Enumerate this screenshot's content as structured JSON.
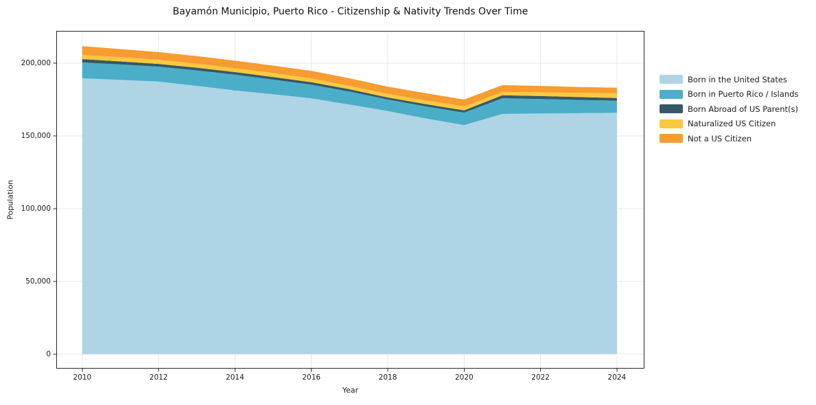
{
  "chart_data": {
    "type": "area",
    "stacked": true,
    "title": "Bayamón Municipio, Puerto Rico - Citizenship & Nativity Trends Over Time",
    "xlabel": "Year",
    "ylabel": "Population",
    "x": [
      2010,
      2011,
      2012,
      2013,
      2014,
      2015,
      2016,
      2017,
      2018,
      2019,
      2020,
      2021,
      2022,
      2023,
      2024
    ],
    "series": [
      {
        "name": "Born in the United States",
        "color": "#a8d0e4",
        "values": [
          189600,
          188500,
          187300,
          184400,
          181300,
          178600,
          175800,
          171500,
          167100,
          162000,
          157400,
          165100,
          165400,
          165600,
          165900
        ]
      },
      {
        "name": "Born in Puerto Rico / Islands",
        "color": "#3ba7c4",
        "values": [
          10900,
          10600,
          10300,
          10600,
          10800,
          10100,
          9400,
          9000,
          7900,
          8300,
          8600,
          10800,
          10000,
          9100,
          8300
        ]
      },
      {
        "name": "Born Abroad of US Parent(s)",
        "color": "#244b5a",
        "values": [
          2300,
          2100,
          1900,
          1900,
          1800,
          1800,
          1700,
          1600,
          1400,
          1500,
          1600,
          2100,
          2000,
          2000,
          1900
        ]
      },
      {
        "name": "Naturalized US Citizen",
        "color": "#fcc32f",
        "values": [
          2900,
          2900,
          2900,
          2800,
          2700,
          2700,
          2600,
          2300,
          2500,
          2600,
          2700,
          2200,
          2600,
          2900,
          3300
        ]
      },
      {
        "name": "Not a US Citizen",
        "color": "#f5941f",
        "values": [
          6000,
          5600,
          5200,
          5200,
          5100,
          5100,
          5200,
          5200,
          5000,
          4900,
          4700,
          4700,
          4400,
          4000,
          3700
        ]
      }
    ],
    "x_ticks": {
      "values": [
        2010,
        2012,
        2014,
        2016,
        2018,
        2020,
        2022,
        2024
      ],
      "labels": [
        "2010",
        "2012",
        "2014",
        "2016",
        "2018",
        "2020",
        "2022",
        "2024"
      ]
    },
    "y_ticks": {
      "values": [
        0,
        50000,
        100000,
        150000,
        200000
      ],
      "labels": [
        "0",
        "50,000",
        "100,000",
        "150,000",
        "200,000"
      ]
    },
    "xlim": [
      2009.32,
      2024.72
    ],
    "ylim": [
      -10000,
      222200
    ],
    "grid": true,
    "legend_position": "right",
    "colors": {
      "grid": "#e7e7e7",
      "spine": "#262626",
      "text": "#1a1a1a",
      "background": "#ffffff"
    }
  }
}
